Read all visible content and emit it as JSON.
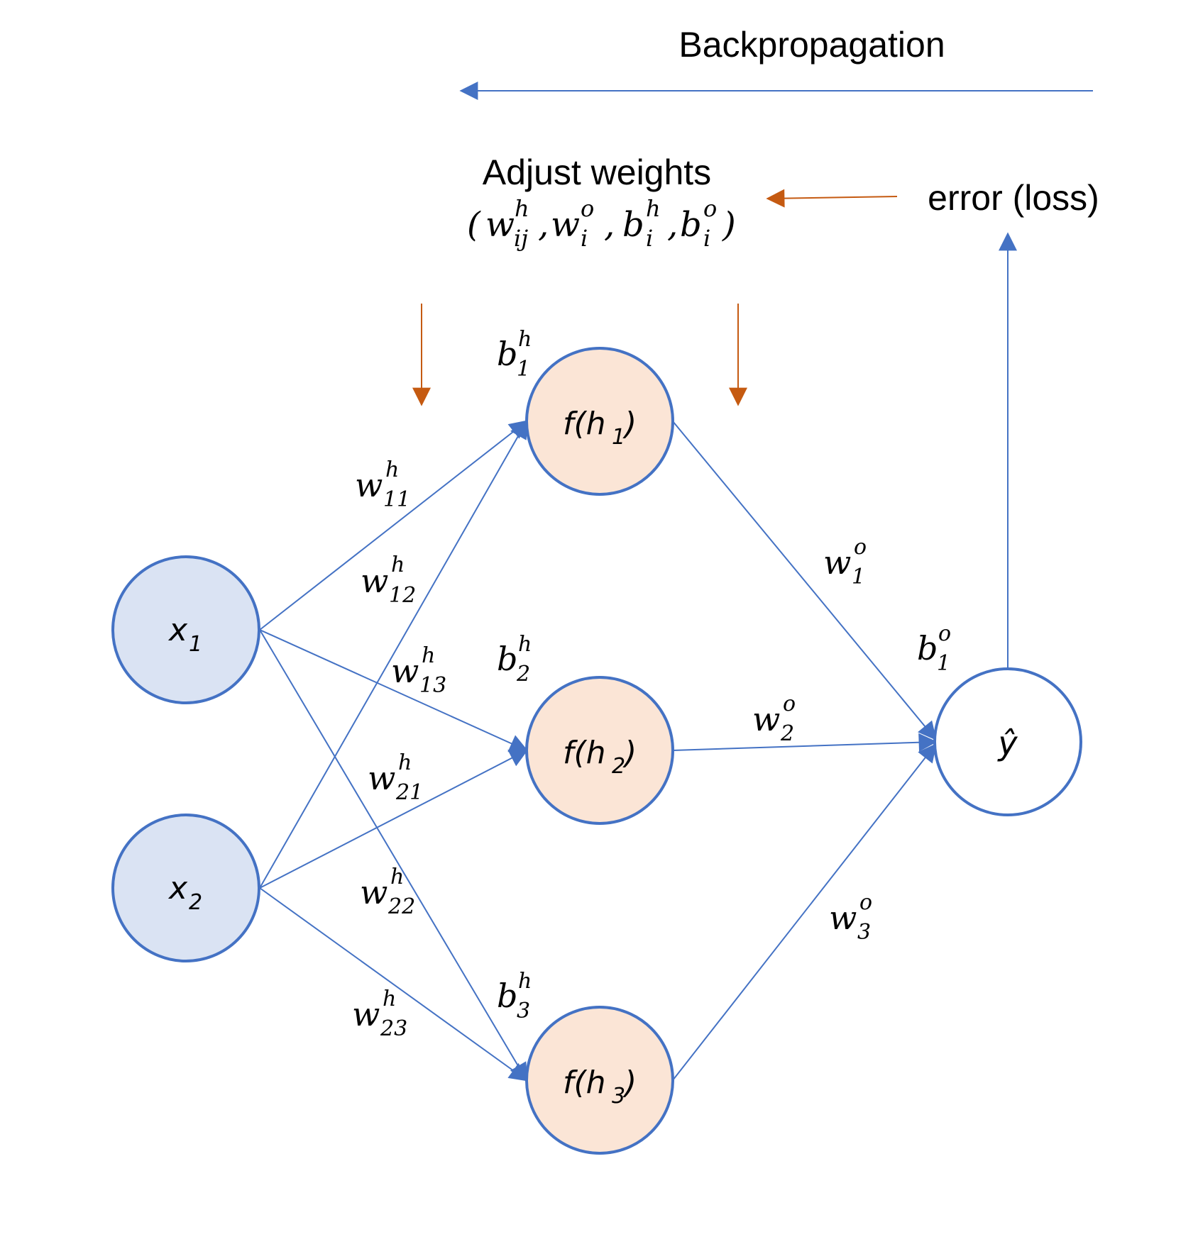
{
  "header": {
    "backprop_label": "Backpropagation",
    "adjust_label": "Adjust weights",
    "error_label": "error (loss)"
  },
  "formula": {
    "open": "(",
    "w": "w",
    "w_h_sup": "h",
    "w_h_sub": "ij",
    "comma": ",",
    "w_o_sup": "o",
    "w_o_sub": "i",
    "b": "b",
    "b_h_sup": "h",
    "b_h_sub": "i",
    "b_o_sup": "o",
    "b_o_sub": "i",
    "close": ")"
  },
  "nodes": {
    "inputs": [
      {
        "base": "x",
        "sub": "1"
      },
      {
        "base": "x",
        "sub": "2"
      }
    ],
    "hidden": [
      {
        "pre": "f(h",
        "sub": "1",
        "post": ")"
      },
      {
        "pre": "f(h",
        "sub": "2",
        "post": ")"
      },
      {
        "pre": "f(h",
        "sub": "3",
        "post": ")"
      }
    ],
    "output": {
      "label": "ŷ"
    }
  },
  "weights_hidden": [
    {
      "base": "w",
      "sup": "h",
      "sub": "11"
    },
    {
      "base": "w",
      "sup": "h",
      "sub": "12"
    },
    {
      "base": "w",
      "sup": "h",
      "sub": "13"
    },
    {
      "base": "w",
      "sup": "h",
      "sub": "21"
    },
    {
      "base": "w",
      "sup": "h",
      "sub": "22"
    },
    {
      "base": "w",
      "sup": "h",
      "sub": "23"
    }
  ],
  "weights_output": [
    {
      "base": "w",
      "sup": "o",
      "sub": "1"
    },
    {
      "base": "w",
      "sup": "o",
      "sub": "2"
    },
    {
      "base": "w",
      "sup": "o",
      "sub": "3"
    }
  ],
  "biases_hidden": [
    {
      "base": "b",
      "sup": "h",
      "sub": "1"
    },
    {
      "base": "b",
      "sup": "h",
      "sub": "2"
    },
    {
      "base": "b",
      "sup": "h",
      "sub": "3"
    }
  ],
  "bias_output": {
    "base": "b",
    "sup": "o",
    "sub": "1"
  },
  "colors": {
    "edge_blue": "#4472C4",
    "orange": "#C55A11",
    "input_fill": "#DAE3F3",
    "hidden_fill": "#FBE5D6",
    "output_fill": "#FFFFFF"
  }
}
